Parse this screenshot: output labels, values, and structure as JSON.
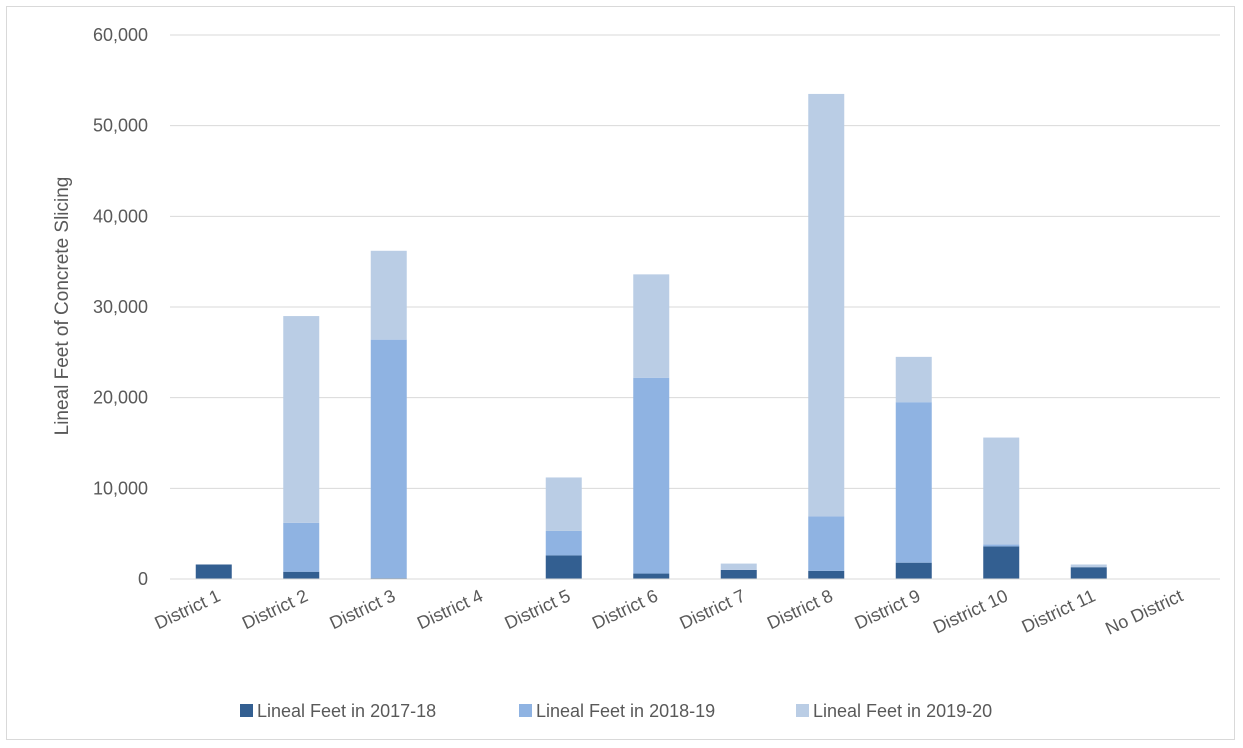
{
  "chart_data": {
    "type": "bar",
    "stacked": true,
    "title": "",
    "xlabel": "",
    "ylabel": "Lineal Feet of Concrete Slicing",
    "ylim": [
      0,
      60000
    ],
    "yticks": [
      "0",
      "10,000",
      "20,000",
      "30,000",
      "40,000",
      "50,000",
      "60,000"
    ],
    "grid": true,
    "legend_position": "bottom",
    "categories": [
      "District 1",
      "District 2",
      "District 3",
      "District 4",
      "District 5",
      "District 6",
      "District 7",
      "District 8",
      "District 9",
      "District 10",
      "District 11",
      "No District"
    ],
    "series": [
      {
        "name": "Lineal Feet in 2017-18",
        "color": "#335f91",
        "values": [
          1600,
          800,
          100,
          0,
          2600,
          600,
          1000,
          900,
          1800,
          3600,
          1300,
          0
        ]
      },
      {
        "name": "Lineal Feet in 2018-19",
        "color": "#8fb3e2",
        "values": [
          0,
          5400,
          26300,
          0,
          2700,
          21600,
          0,
          6000,
          17700,
          200,
          0,
          0
        ]
      },
      {
        "name": "Lineal Feet in 2019-20",
        "color": "#bacde5",
        "values": [
          0,
          22800,
          9800,
          0,
          5900,
          11400,
          700,
          46600,
          5000,
          11800,
          300,
          0
        ]
      }
    ]
  }
}
